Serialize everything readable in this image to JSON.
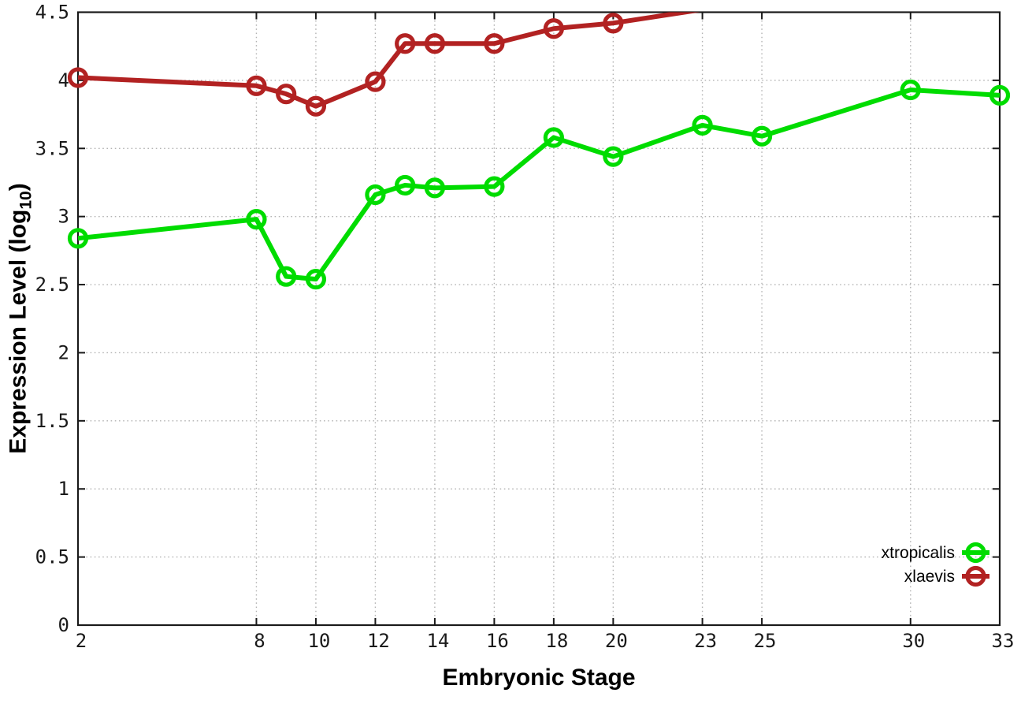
{
  "figure": {
    "background": "#ffffff",
    "border_color": "#1a1a1a",
    "grid_color": "#b3b3b3",
    "tick_color": "#1a1a1a"
  },
  "axes": {
    "xlabel": "Embryonic Stage",
    "ylabel_main": "Expression Level (log",
    "ylabel_sub": "10",
    "ylabel_suffix": ")"
  },
  "chart_data": {
    "type": "line",
    "title": "",
    "xlabel": "Embryonic Stage",
    "ylabel": "Expression Level (log10)",
    "xlim": [
      2,
      33
    ],
    "ylim": [
      0,
      4.5
    ],
    "xticks": [
      2,
      8,
      10,
      12,
      14,
      16,
      18,
      20,
      23,
      25,
      30,
      33
    ],
    "yticks": [
      0,
      0.5,
      1,
      1.5,
      2,
      2.5,
      3,
      3.5,
      4,
      4.5
    ],
    "grid": true,
    "grid_style": "dotted",
    "legend_position": "bottom-right",
    "marker_style": "open-circle",
    "series": [
      {
        "name": "xtropicalis",
        "color": "#00dc00",
        "x": [
          2,
          8,
          9,
          10,
          12,
          13,
          14,
          16,
          18,
          20,
          23,
          25,
          30,
          33
        ],
        "y": [
          2.84,
          2.98,
          2.56,
          2.54,
          3.16,
          3.23,
          3.21,
          3.22,
          3.58,
          3.44,
          3.67,
          3.59,
          3.93,
          3.89
        ]
      },
      {
        "name": "xlaevis",
        "color": "#b22222",
        "x": [
          2,
          8,
          9,
          10,
          12,
          13,
          14,
          16,
          18,
          20,
          23
        ],
        "y": [
          4.02,
          3.96,
          3.9,
          3.81,
          3.99,
          4.27,
          4.27,
          4.27,
          4.38,
          4.42,
          4.52
        ],
        "note": "segment after stage 20 rises above ylim and is clipped at top border"
      }
    ]
  }
}
